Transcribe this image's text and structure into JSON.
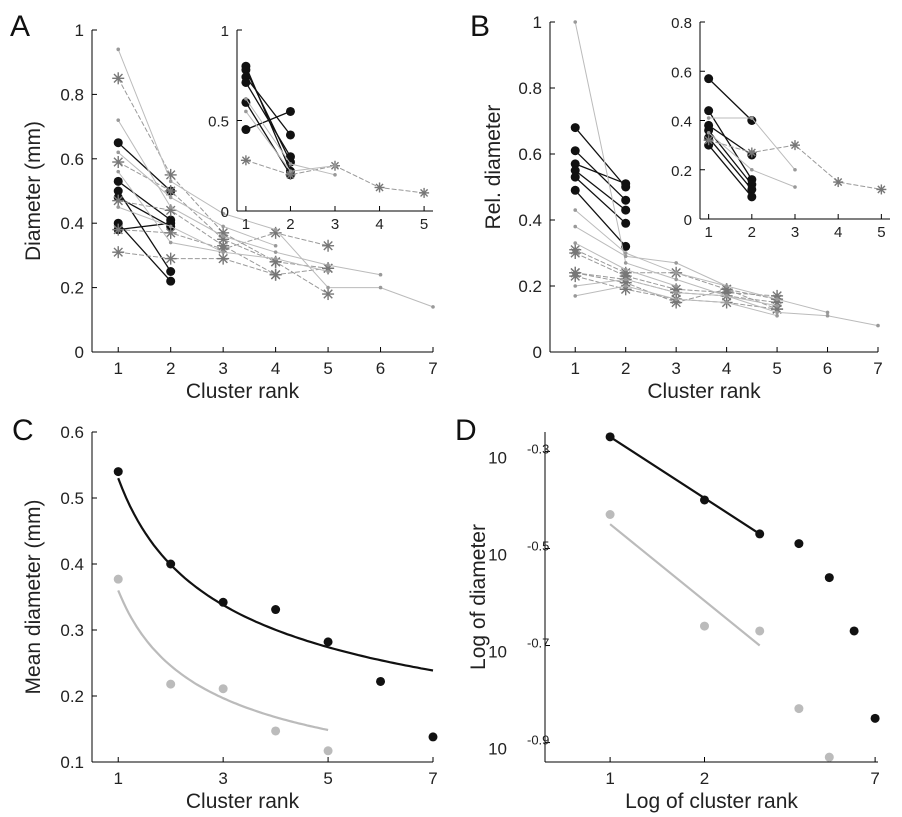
{
  "chart_data": [
    {
      "panel": "A",
      "type": "line",
      "xlabel": "Cluster rank",
      "ylabel": "Diameter (mm)",
      "xlim": [
        0.5,
        7
      ],
      "ylim": [
        0,
        1
      ],
      "xticks": [
        "1",
        "2",
        "3",
        "4",
        "5",
        "6",
        "7"
      ],
      "yticks": [
        "0",
        "0.2",
        "0.4",
        "0.6",
        "0.8",
        "1"
      ],
      "series": [
        {
          "style": "black-dot",
          "x": [
            1,
            2
          ],
          "y": [
            0.65,
            0.5
          ]
        },
        {
          "style": "black-dot",
          "x": [
            1,
            2
          ],
          "y": [
            0.53,
            0.41
          ]
        },
        {
          "style": "black-dot",
          "x": [
            1,
            2
          ],
          "y": [
            0.5,
            0.25
          ]
        },
        {
          "style": "black-dot",
          "x": [
            1,
            2
          ],
          "y": [
            0.48,
            0.39
          ]
        },
        {
          "style": "black-dot",
          "x": [
            1,
            2
          ],
          "y": [
            0.4,
            0.22
          ]
        },
        {
          "style": "black-dot",
          "x": [
            1,
            2
          ],
          "y": [
            0.38,
            0.4
          ]
        },
        {
          "style": "gray-star",
          "x": [
            1,
            2,
            3,
            4,
            5
          ],
          "y": [
            0.85,
            0.55,
            0.37,
            0.28,
            0.18
          ]
        },
        {
          "style": "gray-star",
          "x": [
            1,
            2,
            3,
            4,
            5
          ],
          "y": [
            0.59,
            0.5,
            0.35,
            0.28,
            0.26
          ]
        },
        {
          "style": "gray-star",
          "x": [
            1,
            2,
            3,
            4,
            5
          ],
          "y": [
            0.47,
            0.44,
            0.33,
            0.24,
            0.26
          ]
        },
        {
          "style": "gray-star",
          "x": [
            1,
            2,
            3,
            4,
            5
          ],
          "y": [
            0.38,
            0.37,
            0.32,
            0.37,
            0.33
          ]
        },
        {
          "style": "gray-star",
          "x": [
            1,
            2,
            3,
            4
          ],
          "y": [
            0.31,
            0.29,
            0.29,
            0.24
          ]
        },
        {
          "style": "gray-dot",
          "x": [
            1,
            2,
            3,
            4,
            5,
            6,
            7
          ],
          "y": [
            0.94,
            0.53,
            0.43,
            0.38,
            0.2,
            0.2,
            0.14
          ]
        },
        {
          "style": "gray-dot",
          "x": [
            1,
            2,
            3,
            4,
            5,
            6
          ],
          "y": [
            0.72,
            0.45,
            0.36,
            0.31,
            0.27,
            0.24
          ]
        },
        {
          "style": "gray-dot",
          "x": [
            1,
            2,
            3,
            4
          ],
          "y": [
            0.62,
            0.48,
            0.39,
            0.33
          ]
        },
        {
          "style": "gray-dot",
          "x": [
            1,
            2,
            3
          ],
          "y": [
            0.56,
            0.34,
            0.31
          ]
        },
        {
          "style": "gray-dot",
          "x": [
            1,
            2,
            3,
            4,
            5
          ],
          "y": [
            0.45,
            0.39,
            0.31,
            0.29,
            0.25
          ]
        }
      ],
      "inset": {
        "xlim": [
          0.8,
          5.2
        ],
        "ylim": [
          0,
          1
        ],
        "xticks": [
          "1",
          "2",
          "3",
          "4",
          "5"
        ],
        "yticks": [
          "0",
          "0.5",
          "1"
        ],
        "series": [
          {
            "style": "black-dot",
            "x": [
              1,
              2
            ],
            "y": [
              0.8,
              0.22
            ]
          },
          {
            "style": "black-dot",
            "x": [
              1,
              2
            ],
            "y": [
              0.78,
              0.27
            ]
          },
          {
            "style": "black-dot",
            "x": [
              1,
              2
            ],
            "y": [
              0.74,
              0.42
            ]
          },
          {
            "style": "black-dot",
            "x": [
              1,
              2
            ],
            "y": [
              0.71,
              0.3
            ]
          },
          {
            "style": "black-dot",
            "x": [
              1,
              2
            ],
            "y": [
              0.6,
              0.2
            ]
          },
          {
            "style": "black-dot",
            "x": [
              1,
              2
            ],
            "y": [
              0.45,
              0.55
            ]
          },
          {
            "style": "gray-star",
            "x": [
              1,
              2,
              3,
              4,
              5
            ],
            "y": [
              0.28,
              0.2,
              0.25,
              0.13,
              0.1
            ]
          },
          {
            "style": "gray-dot",
            "x": [
              1,
              2,
              3
            ],
            "y": [
              0.62,
              0.26,
              0.2
            ]
          },
          {
            "style": "gray-dot",
            "x": [
              1,
              2,
              3
            ],
            "y": [
              0.55,
              0.22,
              0.25
            ]
          }
        ]
      }
    },
    {
      "panel": "B",
      "type": "line",
      "xlabel": "Cluster rank",
      "ylabel": "Rel. diameter",
      "xlim": [
        0.5,
        7
      ],
      "ylim": [
        0,
        1
      ],
      "xticks": [
        "1",
        "2",
        "3",
        "4",
        "5",
        "6",
        "7"
      ],
      "yticks": [
        "0",
        "0.2",
        "0.4",
        "0.6",
        "0.8",
        "1"
      ],
      "series": [
        {
          "style": "black-dot",
          "x": [
            1,
            2
          ],
          "y": [
            0.68,
            0.5
          ]
        },
        {
          "style": "black-dot",
          "x": [
            1,
            2
          ],
          "y": [
            0.61,
            0.46
          ]
        },
        {
          "style": "black-dot",
          "x": [
            1,
            2
          ],
          "y": [
            0.57,
            0.51
          ]
        },
        {
          "style": "black-dot",
          "x": [
            1,
            2
          ],
          "y": [
            0.55,
            0.43
          ]
        },
        {
          "style": "black-dot",
          "x": [
            1,
            2
          ],
          "y": [
            0.53,
            0.39
          ]
        },
        {
          "style": "black-dot",
          "x": [
            1,
            2
          ],
          "y": [
            0.49,
            0.32
          ]
        },
        {
          "style": "gray-star",
          "x": [
            1,
            2,
            3,
            4,
            5
          ],
          "y": [
            0.31,
            0.24,
            0.24,
            0.19,
            0.16
          ]
        },
        {
          "style": "gray-star",
          "x": [
            1,
            2,
            3,
            4,
            5
          ],
          "y": [
            0.3,
            0.23,
            0.19,
            0.18,
            0.17
          ]
        },
        {
          "style": "gray-star",
          "x": [
            1,
            2,
            3,
            4,
            5
          ],
          "y": [
            0.24,
            0.22,
            0.18,
            0.17,
            0.15
          ]
        },
        {
          "style": "gray-star",
          "x": [
            1,
            2,
            3,
            4,
            5
          ],
          "y": [
            0.24,
            0.21,
            0.15,
            0.19,
            0.13
          ]
        },
        {
          "style": "gray-star",
          "x": [
            1,
            2,
            3,
            4,
            5
          ],
          "y": [
            0.23,
            0.19,
            0.16,
            0.15,
            0.13
          ]
        },
        {
          "style": "gray-dot",
          "x": [
            1,
            2,
            3,
            4,
            5,
            6,
            7
          ],
          "y": [
            1.0,
            0.27,
            0.22,
            0.17,
            0.12,
            0.11,
            0.08
          ]
        },
        {
          "style": "gray-dot",
          "x": [
            1,
            2,
            3,
            4,
            5,
            6
          ],
          "y": [
            0.43,
            0.3,
            0.24,
            0.2,
            0.16,
            0.12
          ]
        },
        {
          "style": "gray-dot",
          "x": [
            1,
            2,
            3,
            4
          ],
          "y": [
            0.38,
            0.29,
            0.27,
            0.2
          ]
        },
        {
          "style": "gray-dot",
          "x": [
            1,
            2,
            3
          ],
          "y": [
            0.33,
            0.25,
            0.2
          ]
        },
        {
          "style": "gray-dot",
          "x": [
            1,
            2,
            3,
            4,
            5
          ],
          "y": [
            0.2,
            0.22,
            0.18,
            0.17,
            0.14
          ]
        },
        {
          "style": "gray-dot",
          "x": [
            1,
            2,
            3,
            4,
            5
          ],
          "y": [
            0.17,
            0.2,
            0.16,
            0.15,
            0.11
          ]
        }
      ],
      "inset": {
        "xlim": [
          0.8,
          5.2
        ],
        "ylim": [
          0,
          0.8
        ],
        "xticks": [
          "1",
          "2",
          "3",
          "4",
          "5"
        ],
        "yticks": [
          "0",
          "0.2",
          "0.4",
          "0.6",
          "0.8"
        ],
        "series": [
          {
            "style": "black-dot",
            "x": [
              1,
              2
            ],
            "y": [
              0.57,
              0.4
            ]
          },
          {
            "style": "black-dot",
            "x": [
              1,
              2
            ],
            "y": [
              0.44,
              0.16
            ]
          },
          {
            "style": "black-dot",
            "x": [
              1,
              2
            ],
            "y": [
              0.38,
              0.26
            ]
          },
          {
            "style": "black-dot",
            "x": [
              1,
              2
            ],
            "y": [
              0.36,
              0.14
            ]
          },
          {
            "style": "black-dot",
            "x": [
              1,
              2
            ],
            "y": [
              0.33,
              0.12
            ]
          },
          {
            "style": "black-dot",
            "x": [
              1,
              2
            ],
            "y": [
              0.3,
              0.09
            ]
          },
          {
            "style": "gray-star",
            "x": [
              1,
              2,
              3,
              4,
              5
            ],
            "y": [
              0.32,
              0.27,
              0.3,
              0.15,
              0.12
            ]
          },
          {
            "style": "gray-dot",
            "x": [
              1,
              2,
              3
            ],
            "y": [
              0.41,
              0.41,
              0.2
            ]
          },
          {
            "style": "gray-dot",
            "x": [
              1,
              2,
              3
            ],
            "y": [
              0.35,
              0.2,
              0.13
            ]
          }
        ]
      }
    },
    {
      "panel": "C",
      "type": "scatter",
      "xlabel": "Cluster rank",
      "ylabel": "Mean diameter (mm)",
      "xlim": [
        0.5,
        7
      ],
      "ylim": [
        0.1,
        0.6
      ],
      "xticks": [
        "1",
        "3",
        "5",
        "7"
      ],
      "yticks": [
        "0.1",
        "0.2",
        "0.3",
        "0.4",
        "0.5",
        "0.6"
      ],
      "series": [
        {
          "color": "#111111",
          "x": [
            1,
            2,
            3,
            4,
            5,
            6,
            7
          ],
          "y": [
            0.54,
            0.4,
            0.342,
            0.331,
            0.282,
            0.222,
            0.138
          ],
          "fit": {
            "a": 0.53,
            "b": -0.41
          }
        },
        {
          "color": "#bbbbbb",
          "x": [
            1,
            2,
            3,
            4,
            5
          ],
          "y": [
            0.377,
            0.218,
            0.211,
            0.147,
            0.117
          ],
          "fit": {
            "a": 0.36,
            "b": -0.55
          }
        }
      ]
    },
    {
      "panel": "D",
      "type": "scatter",
      "xlabel": "Log of cluster rank",
      "ylabel": "Log of diameter",
      "xscale": "log",
      "xlim": [
        0.62,
        7.15
      ],
      "ylim": [
        -0.94,
        -0.26
      ],
      "xticks": [
        "1",
        "2",
        "7"
      ],
      "yticks": [
        "10^-0.3",
        "10^-0.5",
        "10^-0.7",
        "10^-0.9"
      ],
      "series": [
        {
          "color": "#111111",
          "x": [
            1,
            2,
            3,
            4,
            5,
            6,
            7
          ],
          "y": [
            -0.27,
            -0.4,
            -0.47,
            -0.49,
            -0.56,
            -0.67,
            -0.85
          ],
          "fit": {
            "x": [
              1,
              3
            ],
            "y": [
              -0.27,
              -0.47
            ]
          }
        },
        {
          "color": "#bbbbbb",
          "x": [
            1,
            2,
            3,
            4,
            5
          ],
          "y": [
            -0.43,
            -0.66,
            -0.67,
            -0.83,
            -0.93
          ],
          "fit": {
            "x": [
              1,
              3
            ],
            "y": [
              -0.45,
              -0.7
            ]
          }
        }
      ]
    }
  ]
}
